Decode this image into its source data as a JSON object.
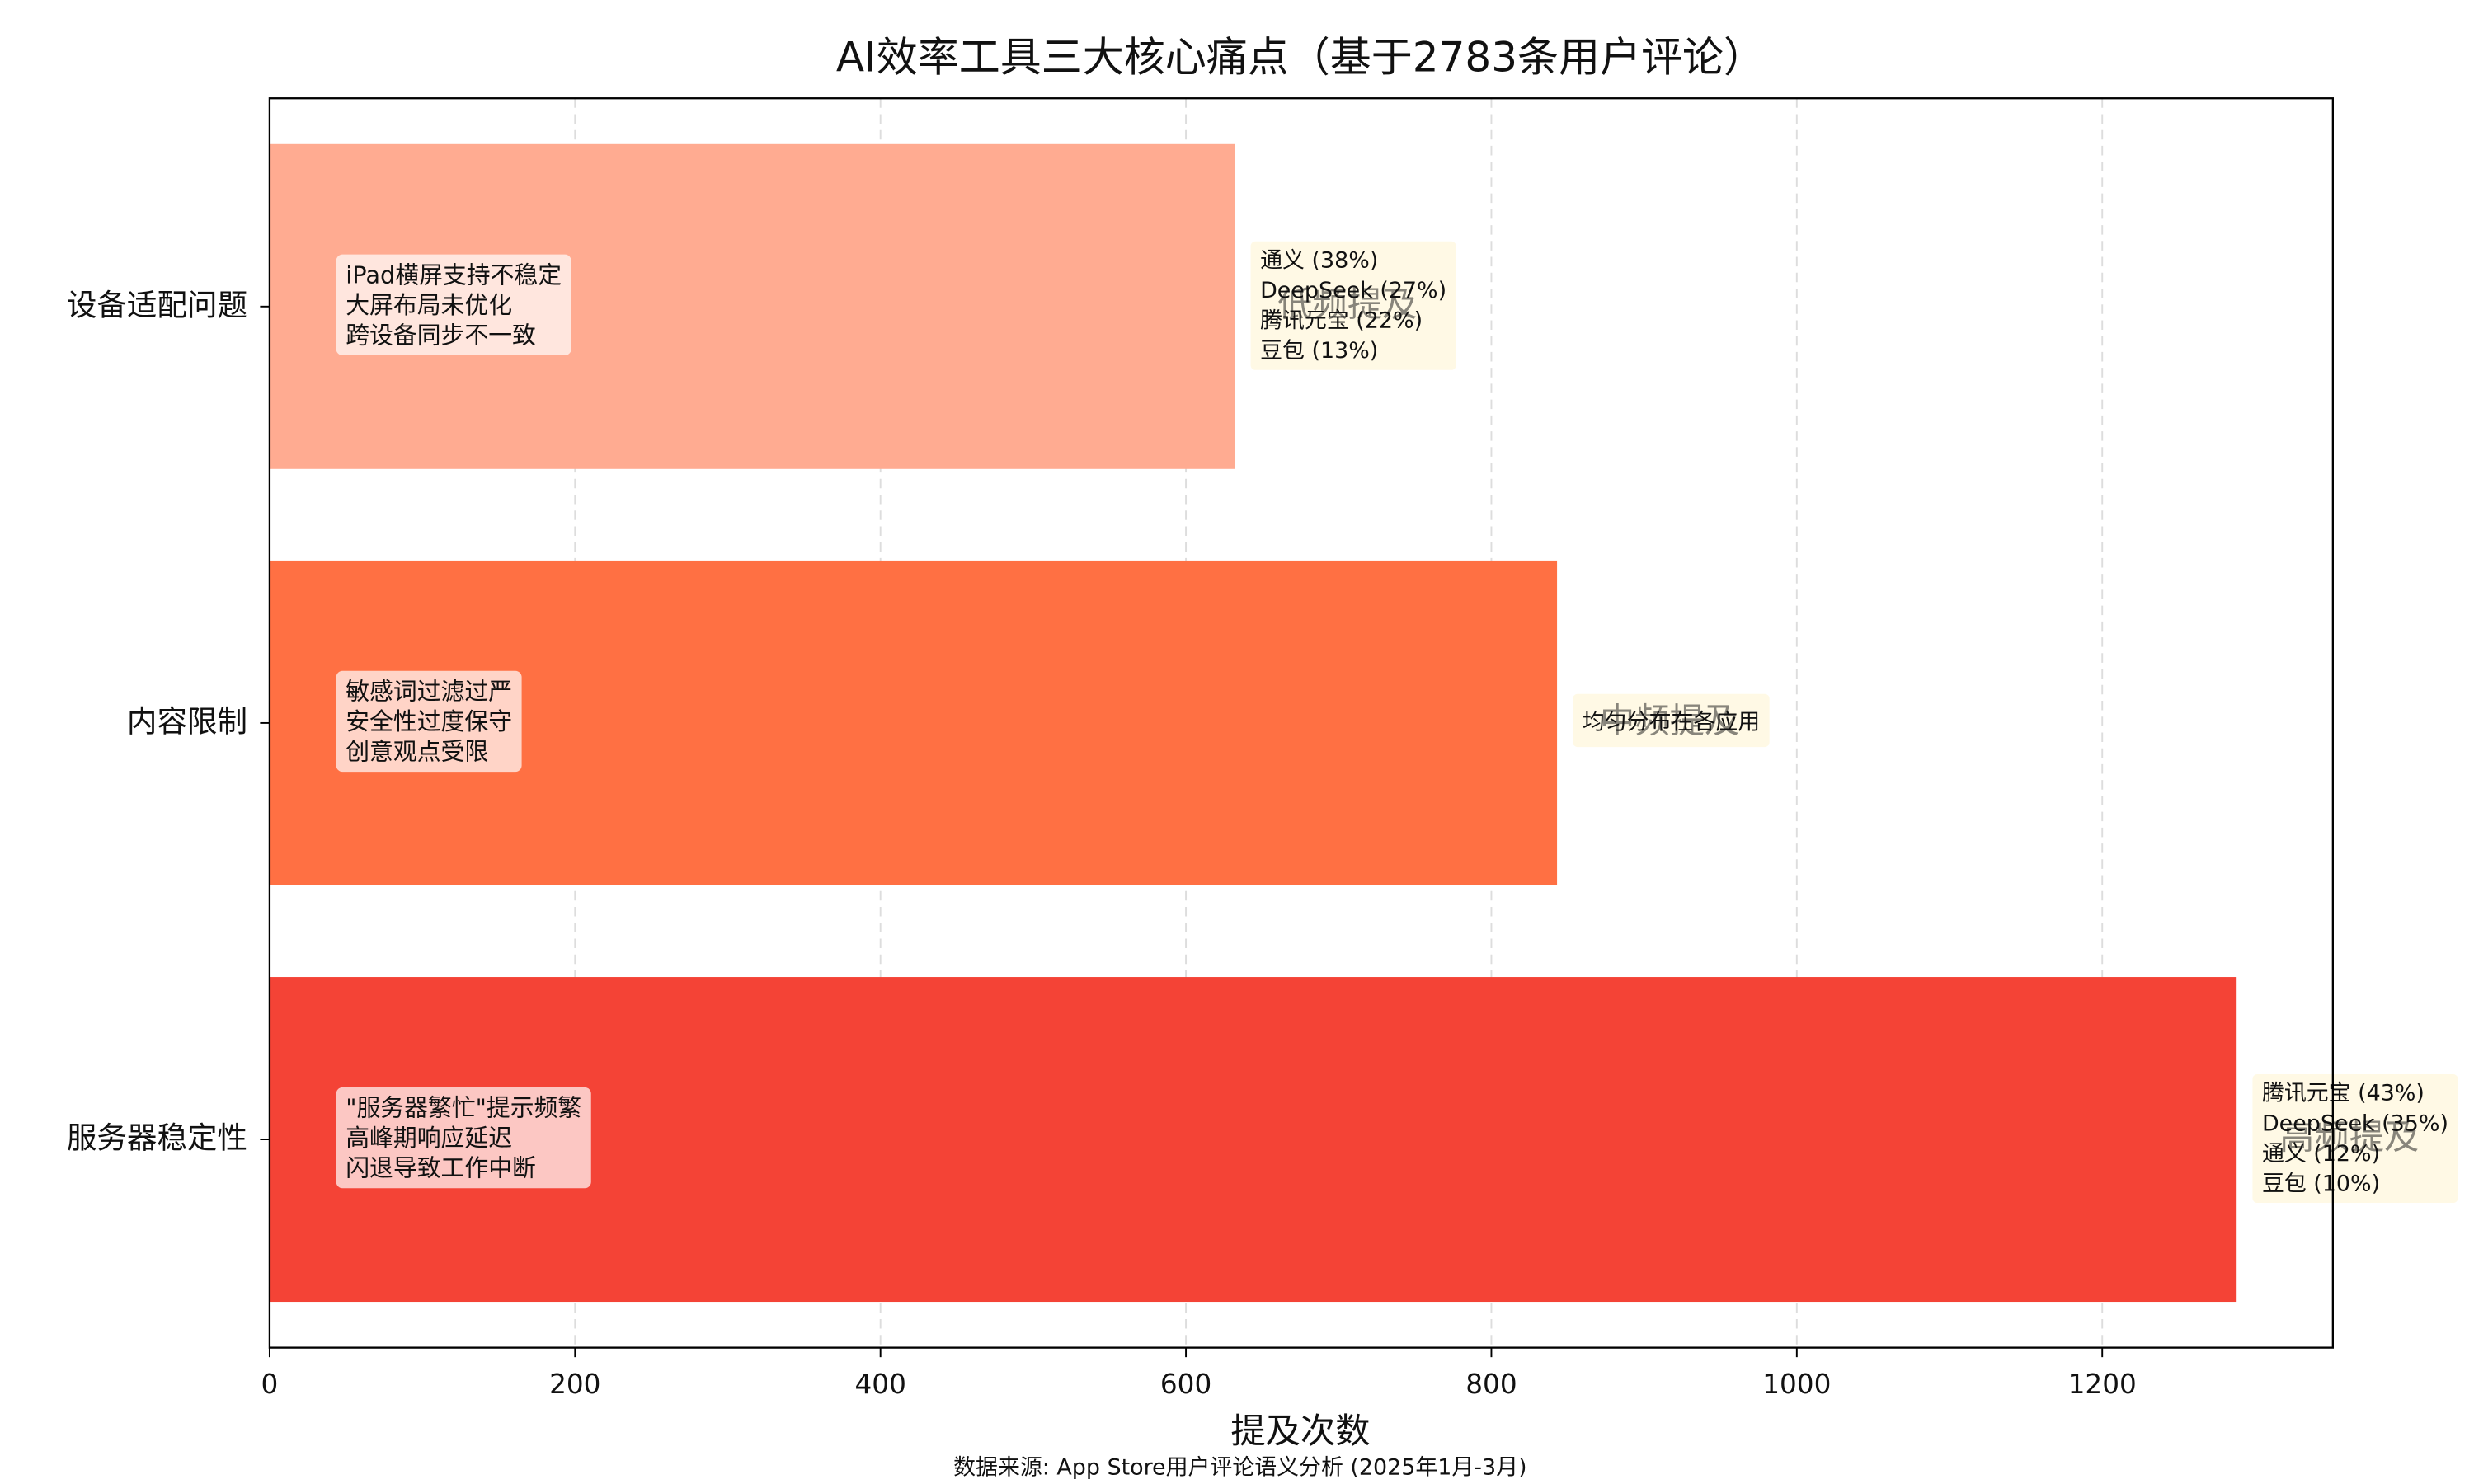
{
  "chart_data": {
    "type": "bar",
    "orientation": "horizontal",
    "title": "AI效率工具三大核心痛点（基于2783条用户评论）",
    "categories": [
      "服务器稳定性",
      "内容限制",
      "设备适配问题"
    ],
    "values": [
      1288,
      843,
      632
    ],
    "colors": [
      "#f44336",
      "#ff7043",
      "#ffab91"
    ],
    "pain_points": [
      [
        "\"服务器繁忙\"提示频繁",
        "高峰期响应延迟",
        "闪退导致工作中断"
      ],
      [
        "敏感词过滤过严",
        "安全性过度保守",
        "创意观点受限"
      ],
      [
        "iPad横屏支持不稳定",
        "大屏布局未优化",
        "跨设备同步不一致"
      ]
    ],
    "breakdowns": [
      [
        "腾讯元宝 (43%)",
        "DeepSeek (35%)",
        "通义 (12%)",
        "豆包 (10%)"
      ],
      [
        "均匀分布在各应用"
      ],
      [
        "通义 (38%)",
        "DeepSeek (27%)",
        "腾讯元宝 (22%)",
        "豆包 (13%)"
      ]
    ],
    "frequency_labels": [
      "高频提及",
      "中频提及",
      "低频提及"
    ],
    "xlabel": "提及次数",
    "footnote": "数据来源: App Store用户评论语义分析 (2025年1月-3月)",
    "xlim": [
      0,
      1351
    ],
    "xticks": [
      0,
      200,
      400,
      600,
      800,
      1000,
      1200
    ],
    "grid": true
  }
}
